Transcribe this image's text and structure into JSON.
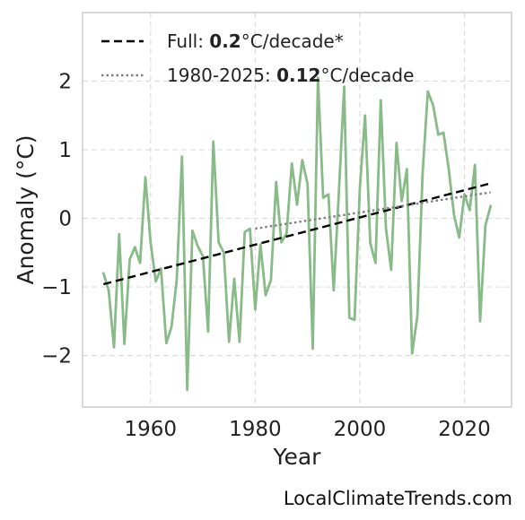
{
  "chart_data": {
    "type": "line",
    "xlabel": "Year",
    "ylabel": "Anomaly (°C)",
    "xlim": [
      1947,
      2029
    ],
    "ylim": [
      -2.75,
      3.0
    ],
    "xticks": [
      {
        "value": 1960,
        "label": "1960"
      },
      {
        "value": 1980,
        "label": "1980"
      },
      {
        "value": 2000,
        "label": "2000"
      },
      {
        "value": 2020,
        "label": "2020"
      }
    ],
    "yticks": [
      {
        "value": -2,
        "label": "−2"
      },
      {
        "value": -1,
        "label": "−1"
      },
      {
        "value": 0,
        "label": "0"
      },
      {
        "value": 1,
        "label": "1"
      },
      {
        "value": 2,
        "label": "2"
      }
    ],
    "grid": true,
    "legend_position": "top-left",
    "series": [
      {
        "style": "solid",
        "color": "#88bb88",
        "x": [
          1951,
          1952,
          1953,
          1954,
          1955,
          1956,
          1957,
          1958,
          1959,
          1960,
          1961,
          1962,
          1963,
          1964,
          1965,
          1966,
          1967,
          1968,
          1969,
          1970,
          1971,
          1972,
          1973,
          1974,
          1975,
          1976,
          1977,
          1978,
          1979,
          1980,
          1981,
          1982,
          1983,
          1984,
          1985,
          1986,
          1987,
          1988,
          1989,
          1990,
          1991,
          1992,
          1993,
          1994,
          1995,
          1996,
          1997,
          1998,
          1999,
          2000,
          2001,
          2002,
          2003,
          2004,
          2005,
          2006,
          2007,
          2008,
          2009,
          2010,
          2011,
          2012,
          2013,
          2014,
          2015,
          2016,
          2017,
          2018,
          2019,
          2020,
          2021,
          2022,
          2023,
          2024,
          2025
        ],
        "y": [
          -0.8,
          -1.05,
          -1.88,
          -0.23,
          -1.83,
          -0.6,
          -0.42,
          -0.65,
          0.6,
          -0.35,
          -0.92,
          -0.73,
          -1.82,
          -1.58,
          -0.9,
          0.9,
          -2.5,
          -0.18,
          -0.4,
          -0.55,
          -1.65,
          1.12,
          -0.35,
          -0.5,
          -1.8,
          -0.88,
          -1.8,
          -0.2,
          -0.15,
          -1.33,
          -0.38,
          -1.12,
          -0.9,
          0.53,
          -0.35,
          -0.22,
          0.8,
          0.2,
          0.85,
          0.5,
          -1.9,
          2.05,
          0.3,
          0.35,
          -1.05,
          0.38,
          1.92,
          -1.45,
          -1.48,
          0.45,
          1.5,
          -0.36,
          -0.65,
          1.72,
          -0.15,
          -0.75,
          1.1,
          0.25,
          0.72,
          -1.97,
          -1.42,
          0.65,
          1.85,
          1.65,
          1.22,
          1.25,
          0.72,
          0.05,
          -0.28,
          0.35,
          0.12,
          0.78,
          -1.5,
          -0.1,
          0.18
        ]
      },
      {
        "name": "Full",
        "style": "dashed",
        "color": "#000000",
        "x": [
          1951,
          2025
        ],
        "y": [
          -0.96,
          0.51
        ]
      },
      {
        "name": "1980-2025",
        "style": "dotted",
        "color": "#808080",
        "x": [
          1980,
          2025
        ],
        "y": [
          -0.15,
          0.38
        ]
      }
    ],
    "legend": [
      {
        "prefix": "Full: ",
        "value": "0.2",
        "suffix": "°C/decade*",
        "style": "dashed",
        "color": "#000000"
      },
      {
        "prefix": "1980-2025: ",
        "value": "0.12",
        "suffix": "°C/decade",
        "style": "dotted",
        "color": "#808080"
      }
    ]
  },
  "footer": {
    "watermark": "LocalClimateTrends.com"
  }
}
